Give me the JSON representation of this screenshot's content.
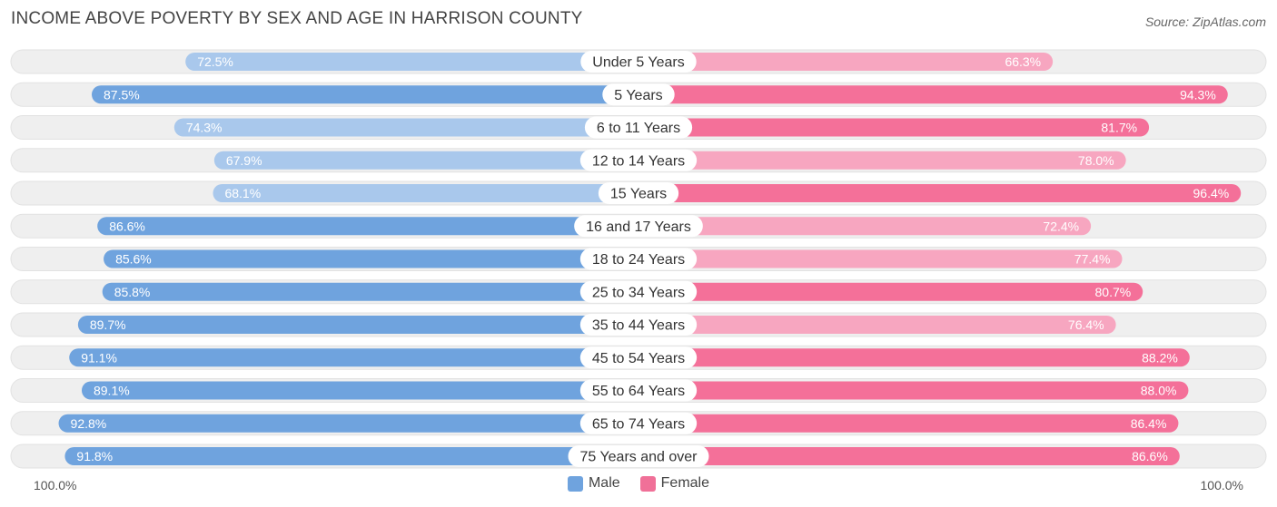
{
  "header": {
    "title": "INCOME ABOVE POVERTY BY SEX AND AGE IN HARRISON COUNTY",
    "source": "Source: ZipAtlas.com"
  },
  "axis": {
    "left_label": "100.0%",
    "right_label": "100.0%"
  },
  "legend": {
    "male_label": "Male",
    "female_label": "Female",
    "male_color": "#6fa3de",
    "female_color": "#f07098"
  },
  "colors": {
    "male_strong": "#6fa3de",
    "male_light": "#a9c8ec",
    "female_strong": "#f47099",
    "female_light": "#f7a6c0",
    "track": "#efefef"
  },
  "chart_data": {
    "type": "bar",
    "orientation": "horizontal-diverging",
    "title": "INCOME ABOVE POVERTY BY SEX AND AGE IN HARRISON COUNTY",
    "xlim": [
      0,
      100
    ],
    "categories": [
      "Under 5 Years",
      "5 Years",
      "6 to 11 Years",
      "12 to 14 Years",
      "15 Years",
      "16 and 17 Years",
      "18 to 24 Years",
      "25 to 34 Years",
      "35 to 44 Years",
      "45 to 54 Years",
      "55 to 64 Years",
      "65 to 74 Years",
      "75 Years and over"
    ],
    "series": [
      {
        "name": "Male",
        "values": [
          72.5,
          87.5,
          74.3,
          67.9,
          68.1,
          86.6,
          85.6,
          85.8,
          89.7,
          91.1,
          89.1,
          92.8,
          91.8
        ],
        "labels": [
          "72.5%",
          "87.5%",
          "74.3%",
          "67.9%",
          "68.1%",
          "86.6%",
          "85.6%",
          "85.8%",
          "89.7%",
          "91.1%",
          "89.1%",
          "92.8%",
          "91.8%"
        ]
      },
      {
        "name": "Female",
        "values": [
          66.3,
          94.3,
          81.7,
          78.0,
          96.4,
          72.4,
          77.4,
          80.7,
          76.4,
          88.2,
          88.0,
          86.4,
          86.6
        ],
        "labels": [
          "66.3%",
          "94.3%",
          "81.7%",
          "78.0%",
          "96.4%",
          "72.4%",
          "77.4%",
          "80.7%",
          "76.4%",
          "88.2%",
          "88.0%",
          "86.4%",
          "86.6%"
        ]
      }
    ]
  }
}
